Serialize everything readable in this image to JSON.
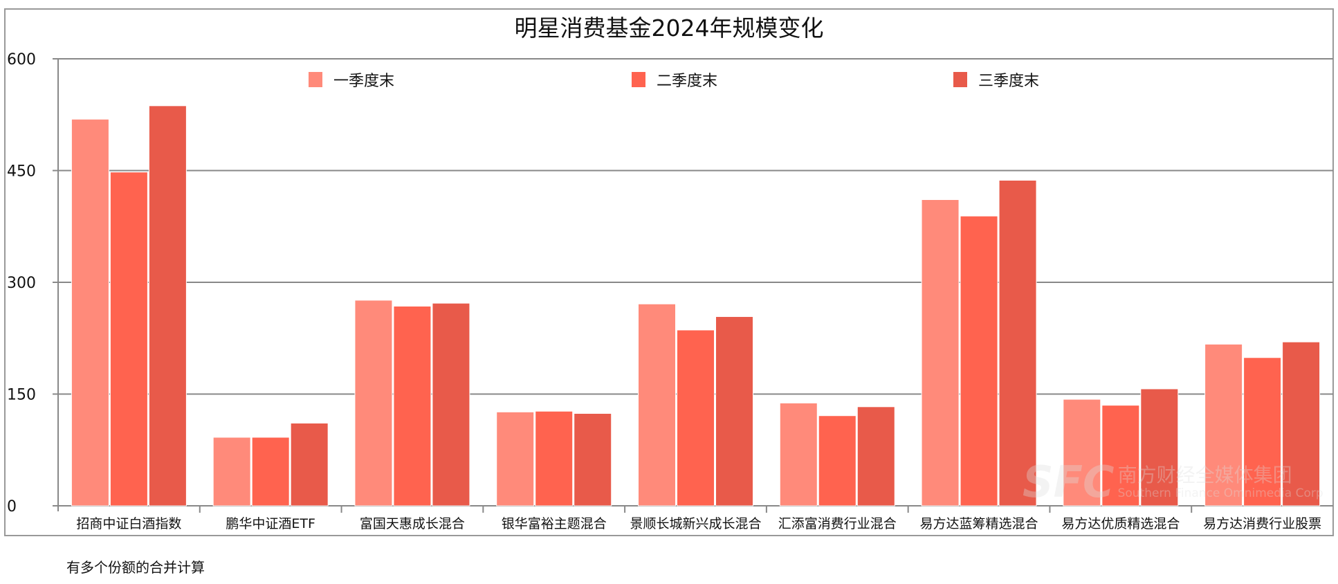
{
  "chart_data": {
    "type": "bar",
    "title": "明星消费基金2024年规模变化",
    "categories": [
      "招商中证白酒指数",
      "鹏华中证酒ETF",
      "富国天惠成长混合",
      "银华富裕主题混合",
      "景顺长城新兴成长混合",
      "汇添富消费行业混合",
      "易方达蓝筹精选混合",
      "易方达优质精选混合",
      "易方达消费行业股票"
    ],
    "series": [
      {
        "name": "一季度末",
        "color": "#ff8a7a",
        "values": [
          519,
          92,
          276,
          126,
          271,
          138,
          411,
          143,
          217
        ]
      },
      {
        "name": "二季度末",
        "color": "#ff634f",
        "values": [
          448,
          92,
          268,
          127,
          236,
          121,
          389,
          135,
          199
        ]
      },
      {
        "name": "三季度末",
        "color": "#e85a4a",
        "values": [
          537,
          111,
          272,
          124,
          254,
          133,
          437,
          157,
          220
        ]
      }
    ],
    "ylim": [
      0,
      600
    ],
    "yticks": [
      "0",
      "150",
      "300",
      "450",
      "600"
    ],
    "grid": true,
    "legend_position": "top"
  },
  "footnote": "有多个份额的合并计算",
  "watermark": {
    "logo": "SFC",
    "line1": "南方财经全媒体集团",
    "line2": "Southern Finance Omnimedia Corp"
  }
}
